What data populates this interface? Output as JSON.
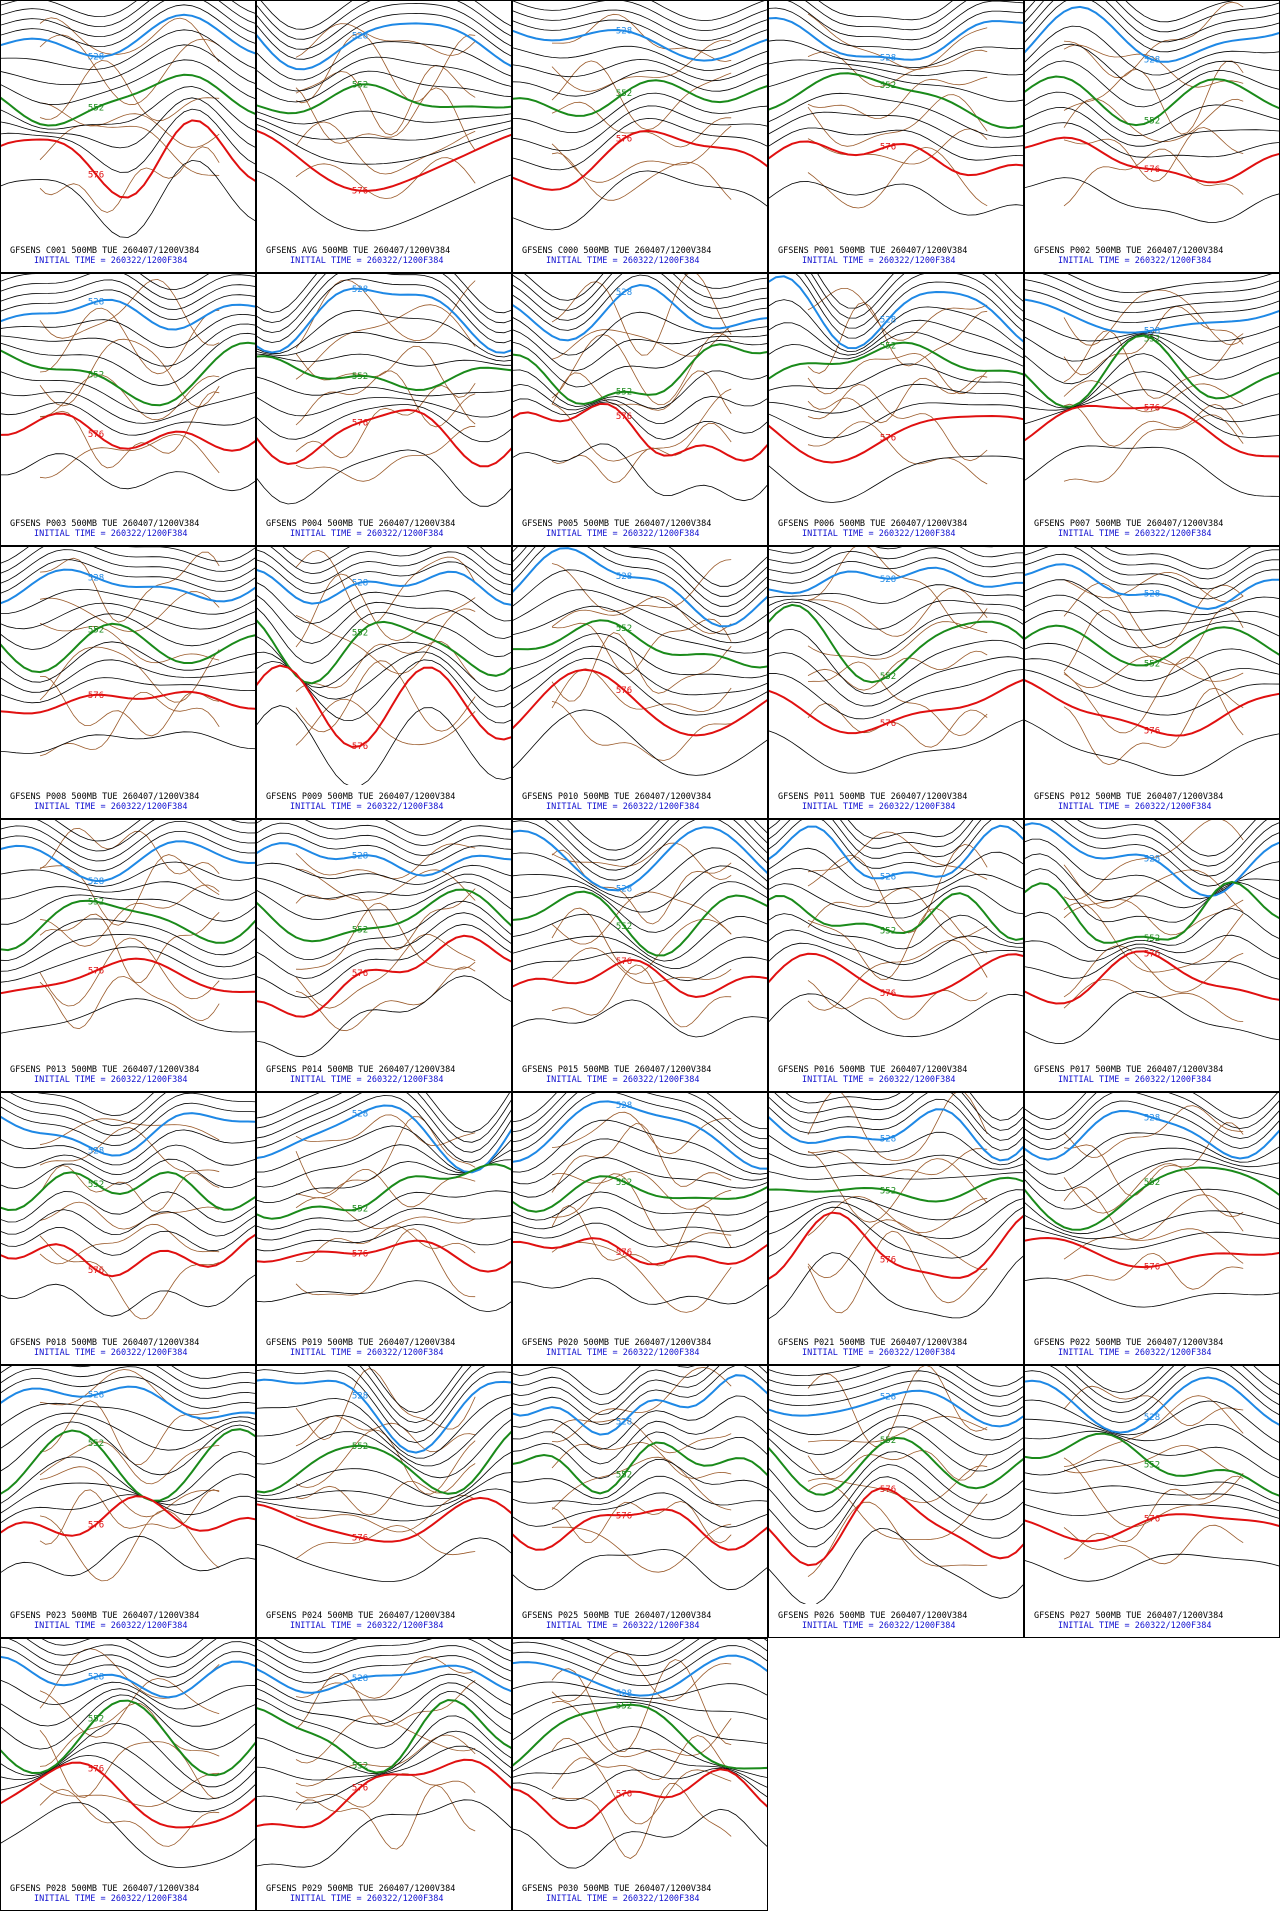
{
  "panels": [
    {
      "title": "GFSENS C001 500MB TUE 260407/1200V384",
      "initial": "INITIAL TIME = 260322/1200F384",
      "contours": [
        528,
        552,
        576
      ]
    },
    {
      "title": "GFSENS AVG 500MB TUE 260407/1200V384",
      "initial": "INITIAL TIME = 260322/1200F384",
      "contours": [
        528,
        552,
        576
      ]
    },
    {
      "title": "GFSENS C000 500MB TUE 260407/1200V384",
      "initial": "INITIAL TIME = 260322/1200F384",
      "contours": [
        528,
        552,
        576
      ]
    },
    {
      "title": "GFSENS P001 500MB TUE 260407/1200V384",
      "initial": "INITIAL TIME = 260322/1200F384",
      "contours": [
        528,
        552,
        576
      ]
    },
    {
      "title": "GFSENS P002 500MB TUE 260407/1200V384",
      "initial": "INITIAL TIME = 260322/1200F384",
      "contours": [
        528,
        552,
        576
      ]
    },
    {
      "title": "GFSENS P003 500MB TUE 260407/1200V384",
      "initial": "INITIAL TIME = 260322/1200F384",
      "contours": [
        528,
        552,
        576
      ]
    },
    {
      "title": "GFSENS P004 500MB TUE 260407/1200V384",
      "initial": "INITIAL TIME = 260322/1200F384",
      "contours": [
        528,
        552,
        576
      ]
    },
    {
      "title": "GFSENS P005 500MB TUE 260407/1200V384",
      "initial": "INITIAL TIME = 260322/1200F384",
      "contours": [
        528,
        552,
        576
      ]
    },
    {
      "title": "GFSENS P006 500MB TUE 260407/1200V384",
      "initial": "INITIAL TIME = 260322/1200F384",
      "contours": [
        528,
        552,
        576
      ]
    },
    {
      "title": "GFSENS P007 500MB TUE 260407/1200V384",
      "initial": "INITIAL TIME = 260322/1200F384",
      "contours": [
        528,
        552,
        576
      ]
    },
    {
      "title": "GFSENS P008 500MB TUE 260407/1200V384",
      "initial": "INITIAL TIME = 260322/1200F384",
      "contours": [
        528,
        552,
        576
      ]
    },
    {
      "title": "GFSENS P009 500MB TUE 260407/1200V384",
      "initial": "INITIAL TIME = 260322/1200F384",
      "contours": [
        528,
        552,
        576
      ]
    },
    {
      "title": "GFSENS P010 500MB TUE 260407/1200V384",
      "initial": "INITIAL TIME = 260322/1200F384",
      "contours": [
        528,
        552,
        576
      ]
    },
    {
      "title": "GFSENS P011 500MB TUE 260407/1200V384",
      "initial": "INITIAL TIME = 260322/1200F384",
      "contours": [
        528,
        552,
        576
      ]
    },
    {
      "title": "GFSENS P012 500MB TUE 260407/1200V384",
      "initial": "INITIAL TIME = 260322/1200F384",
      "contours": [
        528,
        552,
        576
      ]
    },
    {
      "title": "GFSENS P013 500MB TUE 260407/1200V384",
      "initial": "INITIAL TIME = 260322/1200F384",
      "contours": [
        528,
        552,
        576
      ]
    },
    {
      "title": "GFSENS P014 500MB TUE 260407/1200V384",
      "initial": "INITIAL TIME = 260322/1200F384",
      "contours": [
        528,
        552,
        576
      ]
    },
    {
      "title": "GFSENS P015 500MB TUE 260407/1200V384",
      "initial": "INITIAL TIME = 260322/1200F384",
      "contours": [
        528,
        552,
        576
      ]
    },
    {
      "title": "GFSENS P016 500MB TUE 260407/1200V384",
      "initial": "INITIAL TIME = 260322/1200F384",
      "contours": [
        528,
        552,
        576
      ]
    },
    {
      "title": "GFSENS P017 500MB TUE 260407/1200V384",
      "initial": "INITIAL TIME = 260322/1200F384",
      "contours": [
        528,
        552,
        576
      ]
    },
    {
      "title": "GFSENS P018 500MB TUE 260407/1200V384",
      "initial": "INITIAL TIME = 260322/1200F384",
      "contours": [
        528,
        552,
        576
      ]
    },
    {
      "title": "GFSENS P019 500MB TUE 260407/1200V384",
      "initial": "INITIAL TIME = 260322/1200F384",
      "contours": [
        528,
        552,
        576
      ]
    },
    {
      "title": "GFSENS P020 500MB TUE 260407/1200V384",
      "initial": "INITIAL TIME = 260322/1200F384",
      "contours": [
        528,
        552,
        576
      ]
    },
    {
      "title": "GFSENS P021 500MB TUE 260407/1200V384",
      "initial": "INITIAL TIME = 260322/1200F384",
      "contours": [
        528,
        552,
        576
      ]
    },
    {
      "title": "GFSENS P022 500MB TUE 260407/1200V384",
      "initial": "INITIAL TIME = 260322/1200F384",
      "contours": [
        528,
        552,
        576
      ]
    },
    {
      "title": "GFSENS P023 500MB TUE 260407/1200V384",
      "initial": "INITIAL TIME = 260322/1200F384",
      "contours": [
        528,
        552,
        576
      ]
    },
    {
      "title": "GFSENS P024 500MB TUE 260407/1200V384",
      "initial": "INITIAL TIME = 260322/1200F384",
      "contours": [
        528,
        552,
        576
      ]
    },
    {
      "title": "GFSENS P025 500MB TUE 260407/1200V384",
      "initial": "INITIAL TIME = 260322/1200F384",
      "contours": [
        528,
        552,
        576
      ]
    },
    {
      "title": "GFSENS P026 500MB TUE 260407/1200V384",
      "initial": "INITIAL TIME = 260322/1200F384",
      "contours": [
        528,
        552,
        576
      ]
    },
    {
      "title": "GFSENS P027 500MB TUE 260407/1200V384",
      "initial": "INITIAL TIME = 260322/1200F384",
      "contours": [
        528,
        552,
        576
      ]
    },
    {
      "title": "GFSENS P028 500MB TUE 260407/1200V384",
      "initial": "INITIAL TIME = 260322/1200F384",
      "contours": [
        528,
        552,
        576
      ]
    },
    {
      "title": "GFSENS P029 500MB TUE 260407/1200V384",
      "initial": "INITIAL TIME = 260322/1200F384",
      "contours": [
        528,
        552,
        576
      ]
    },
    {
      "title": "GFSENS P030 500MB TUE 260407/1200V384",
      "initial": "INITIAL TIME = 260322/1200F384",
      "contours": [
        528,
        552,
        576
      ]
    }
  ]
}
